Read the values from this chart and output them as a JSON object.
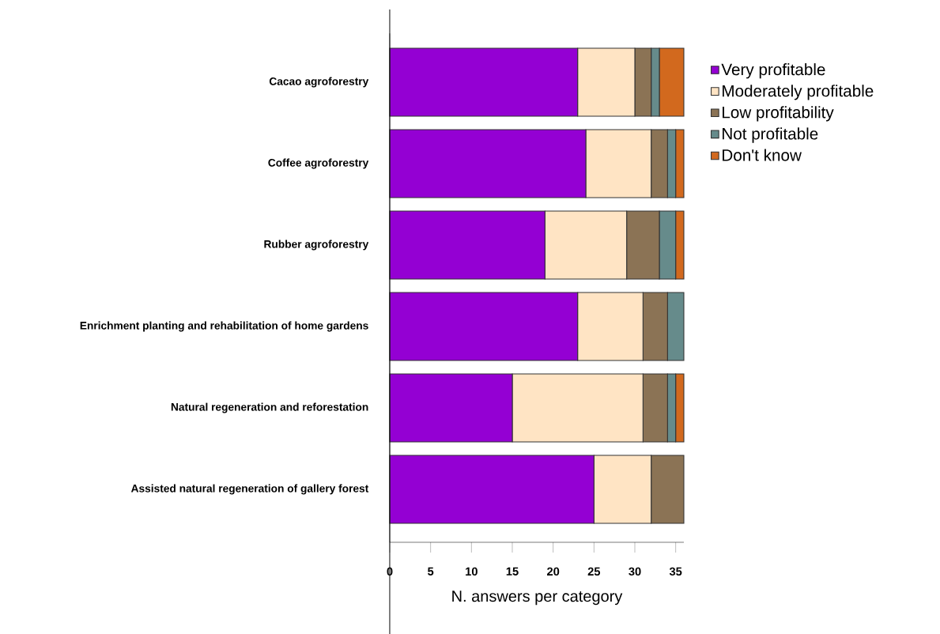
{
  "chart_data": {
    "type": "bar",
    "orientation": "horizontal",
    "stacked": true,
    "legend": "top right",
    "xlabel": "N. answers per category",
    "categories": [
      "Cacao agroforestry",
      "Coffee agroforestry",
      "Rubber agroforestry",
      "Enrichment planting and rehabilitation of home gardens",
      "Natural regeneration and reforestation",
      "Assisted natural regeneration of gallery forest"
    ],
    "series": [
      {
        "name": "Very profitable",
        "color": "#9400d3",
        "values": [
          23,
          24,
          19,
          23,
          15,
          25
        ]
      },
      {
        "name": "Moderately profitable",
        "color": "#ffe4c4",
        "values": [
          7,
          8,
          10,
          8,
          16,
          7
        ]
      },
      {
        "name": "Low profitability",
        "color": "#8b7355",
        "values": [
          2,
          2,
          4,
          3,
          3,
          4
        ]
      },
      {
        "name": "Not profitable",
        "color": "#668b8b",
        "values": [
          1,
          1,
          2,
          2,
          1,
          0
        ]
      },
      {
        "name": "Don't know",
        "color": "#d2691e",
        "values": [
          3,
          1,
          1,
          0,
          1,
          0
        ]
      }
    ],
    "xlim": [
      0,
      36
    ],
    "xticks": [
      0,
      5,
      10,
      15,
      20,
      25,
      30,
      35
    ]
  }
}
